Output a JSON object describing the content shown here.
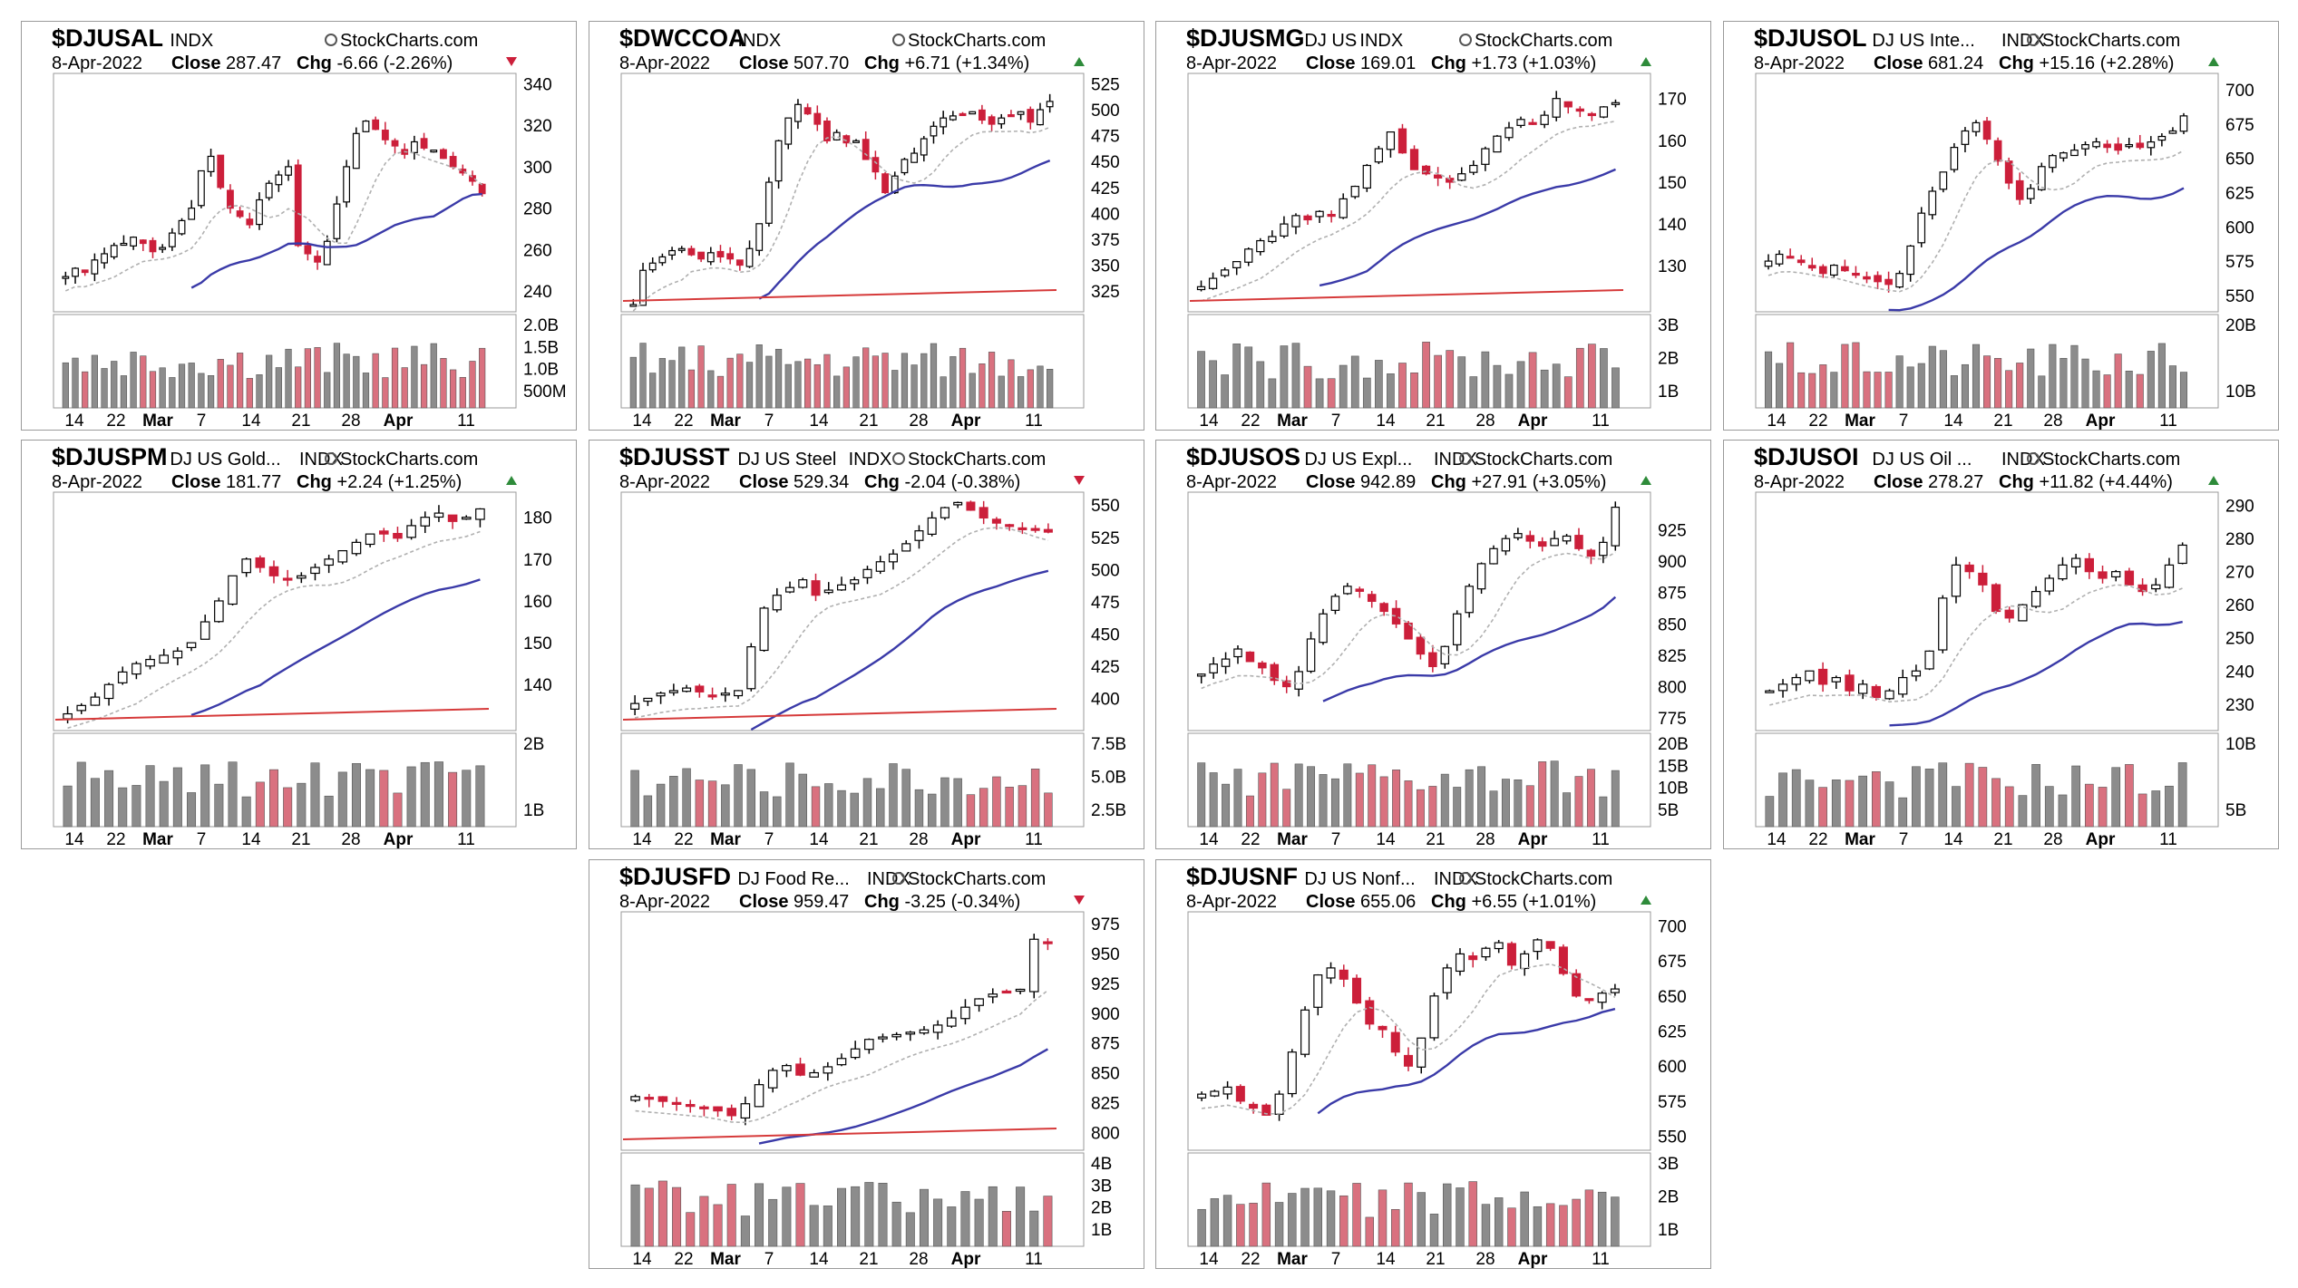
{
  "colors": {
    "up": "#ffffff",
    "down": "#cc1f3a",
    "vol_up": "#8c8c8c",
    "vol_down": "#d9717f",
    "ma_short": "#b0b0b0",
    "ma_mid": "#3a3aa8",
    "ma_long": "#d63a3a",
    "up_arrow": "#2e8b3a",
    "down_arrow": "#cc1f3a"
  },
  "watermark": "StockCharts.com",
  "x_axis_labels": [
    "14",
    "22",
    "Mar",
    "7",
    "14",
    "21",
    "28",
    "Apr",
    "11"
  ],
  "chart_data": [
    {
      "symbol": "$DJUSAL",
      "desc": "",
      "exchange": "INDX",
      "date": "8-Apr-2022",
      "close": "287.47",
      "chg": "-6.66 (-2.26%)",
      "direction": "down",
      "price_ticks": [
        "340",
        "320",
        "300",
        "280",
        "260",
        "240"
      ],
      "price_range": [
        230,
        345
      ],
      "vol_ticks": [
        "2.0B",
        "1.5B",
        "1.0B",
        "500M"
      ],
      "ma": {
        "short": true,
        "mid": true,
        "long": false
      },
      "series": {
        "close": [
          247,
          251,
          249,
          255,
          258,
          262,
          263,
          266,
          263,
          259,
          261,
          268,
          274,
          280,
          298,
          305,
          290,
          280,
          276,
          272,
          284,
          292,
          296,
          300,
          262,
          258,
          254,
          264,
          282,
          300,
          316,
          322,
          318,
          313,
          310,
          306,
          312,
          309,
          308,
          304,
          300,
          297,
          293,
          287
        ]
      }
    },
    {
      "symbol": "$DWCCOA",
      "desc": "",
      "exchange": "INDX",
      "date": "8-Apr-2022",
      "close": "507.70",
      "chg": "+6.71 (+1.34%)",
      "direction": "up",
      "price_ticks": [
        "525",
        "500",
        "475",
        "450",
        "425",
        "400",
        "375",
        "350",
        "325"
      ],
      "price_range": [
        305,
        535
      ],
      "vol_ticks": [],
      "ma": {
        "short": true,
        "mid": true,
        "long": true
      },
      "series": {
        "close": [
          312,
          345,
          352,
          358,
          364,
          366,
          360,
          356,
          362,
          358,
          356,
          350,
          366,
          390,
          430,
          470,
          492,
          505,
          496,
          486,
          470,
          478,
          468,
          470,
          452,
          440,
          420,
          436,
          452,
          458,
          472,
          484,
          492,
          494,
          496,
          498,
          490,
          486,
          492,
          495,
          498,
          488,
          500,
          508
        ]
      }
    },
    {
      "symbol": "$DJUSMG",
      "desc": "DJ US",
      "exchange": "INDX",
      "date": "8-Apr-2022",
      "close": "169.01",
      "chg": "+1.73 (+1.03%)",
      "direction": "up",
      "price_ticks": [
        "170",
        "160",
        "150",
        "140",
        "130"
      ],
      "price_range": [
        119,
        176
      ],
      "vol_ticks": [
        "3B",
        "2B",
        "1B"
      ],
      "ma": {
        "short": true,
        "mid": true,
        "long": true
      },
      "series": {
        "close": [
          125,
          127,
          129,
          131,
          134,
          136,
          137,
          140,
          142,
          141,
          143,
          142,
          146,
          149,
          154,
          158,
          162,
          157,
          153,
          152,
          151,
          150,
          152,
          154,
          158,
          161,
          163,
          165,
          164,
          166,
          170,
          168,
          167,
          166,
          168,
          169
        ]
      }
    },
    {
      "symbol": "$DJUSOL",
      "desc": "DJ US Inte...",
      "exchange": "INDX",
      "date": "8-Apr-2022",
      "close": "681.24",
      "chg": "+15.16 (+2.28%)",
      "direction": "up",
      "price_ticks": [
        "700",
        "675",
        "650",
        "625",
        "600",
        "575",
        "550"
      ],
      "price_range": [
        538,
        712
      ],
      "vol_ticks": [
        "20B",
        "10B"
      ],
      "ma": {
        "short": true,
        "mid": true,
        "long": false
      },
      "series": {
        "close": [
          575,
          580,
          578,
          574,
          570,
          566,
          572,
          568,
          565,
          562,
          560,
          558,
          566,
          586,
          610,
          626,
          640,
          658,
          670,
          676,
          664,
          648,
          632,
          620,
          628,
          644,
          652,
          654,
          656,
          660,
          662,
          658,
          656,
          660,
          658,
          662,
          666,
          670,
          681
        ]
      }
    },
    {
      "symbol": "$DJUSPM",
      "desc": "DJ US Gold...",
      "exchange": "INDX",
      "date": "8-Apr-2022",
      "close": "181.77",
      "chg": "+2.24 (+1.25%)",
      "direction": "up",
      "price_ticks": [
        "180",
        "170",
        "160",
        "150",
        "140"
      ],
      "price_range": [
        129,
        186
      ],
      "vol_ticks": [
        "2B",
        "1B"
      ],
      "ma": {
        "short": true,
        "mid": true,
        "long": true
      },
      "series": {
        "close": [
          133,
          135,
          137,
          140,
          143,
          145,
          146,
          147,
          148,
          150,
          155,
          160,
          166,
          170,
          168,
          166,
          165,
          166,
          168,
          170,
          172,
          174,
          176,
          176,
          175,
          178,
          180,
          181,
          179,
          180,
          182
        ]
      }
    },
    {
      "symbol": "$DJUSST",
      "desc": "DJ US Steel",
      "exchange": "INDX",
      "date": "8-Apr-2022",
      "close": "529.34",
      "chg": "-2.04 (-0.38%)",
      "direction": "down",
      "price_ticks": [
        "550",
        "525",
        "500",
        "475",
        "450",
        "425",
        "400"
      ],
      "price_range": [
        375,
        560
      ],
      "vol_ticks": [
        "7.5B",
        "5.0B",
        "2.5B"
      ],
      "ma": {
        "short": true,
        "mid": true,
        "long": true
      },
      "series": {
        "close": [
          396,
          400,
          404,
          406,
          408,
          405,
          402,
          404,
          406,
          440,
          470,
          480,
          486,
          492,
          480,
          484,
          488,
          492,
          500,
          506,
          512,
          520,
          530,
          540,
          548,
          552,
          546,
          540,
          536,
          534,
          532,
          531,
          529
        ]
      }
    },
    {
      "symbol": "$DJUSOS",
      "desc": "DJ US Expl...",
      "exchange": "INDX",
      "date": "8-Apr-2022",
      "close": "942.89",
      "chg": "+27.91 (+3.05%)",
      "direction": "up",
      "price_ticks": [
        "950",
        "925",
        "900",
        "875",
        "850",
        "825",
        "800",
        "775"
      ],
      "price_range": [
        765,
        955
      ],
      "vol_ticks": [
        "20B",
        "15B",
        "10B",
        "5B"
      ],
      "ma": {
        "short": true,
        "mid": true,
        "long": false
      },
      "series": {
        "close": [
          810,
          818,
          822,
          830,
          820,
          815,
          805,
          800,
          812,
          838,
          858,
          872,
          880,
          876,
          868,
          860,
          850,
          838,
          826,
          816,
          832,
          858,
          880,
          898,
          910,
          918,
          922,
          916,
          912,
          918,
          920,
          910,
          904,
          915,
          943
        ]
      }
    },
    {
      "symbol": "$DJUSOI",
      "desc": "DJ US Oil ...",
      "exchange": "INDX",
      "date": "8-Apr-2022",
      "close": "278.27",
      "chg": "+11.82 (+4.44%)",
      "direction": "up",
      "price_ticks": [
        "290",
        "280",
        "270",
        "260",
        "250",
        "240",
        "230"
      ],
      "price_range": [
        222,
        294
      ],
      "vol_ticks": [
        "10B",
        "5B"
      ],
      "ma": {
        "short": true,
        "mid": true,
        "long": false
      },
      "series": {
        "close": [
          234,
          236,
          238,
          240,
          236,
          238,
          234,
          236,
          232,
          234,
          238,
          240,
          246,
          262,
          272,
          270,
          266,
          258,
          256,
          260,
          264,
          268,
          272,
          274,
          270,
          268,
          270,
          266,
          264,
          266,
          272,
          278
        ]
      }
    },
    {
      "symbol": "$DJUSFD",
      "desc": "DJ Food Re...",
      "exchange": "INDX",
      "date": "8-Apr-2022",
      "close": "959.47",
      "chg": "-3.25 (-0.34%)",
      "direction": "down",
      "price_ticks": [
        "975",
        "950",
        "925",
        "900",
        "875",
        "850",
        "825",
        "800"
      ],
      "price_range": [
        785,
        985
      ],
      "vol_ticks": [
        "4B",
        "3B",
        "2B",
        "1B"
      ],
      "ma": {
        "short": true,
        "mid": true,
        "long": true
      },
      "series": {
        "close": [
          830,
          828,
          826,
          824,
          822,
          820,
          818,
          814,
          824,
          840,
          852,
          856,
          848,
          850,
          855,
          862,
          870,
          878,
          880,
          882,
          884,
          886,
          890,
          896,
          905,
          912,
          916,
          918,
          920,
          962,
          959
        ]
      }
    },
    {
      "symbol": "$DJUSNF",
      "desc": "DJ US Nonf...",
      "exchange": "INDX",
      "date": "8-Apr-2022",
      "close": "655.06",
      "chg": "+6.55 (+1.01%)",
      "direction": "up",
      "price_ticks": [
        "700",
        "675",
        "650",
        "625",
        "600",
        "575",
        "550"
      ],
      "price_range": [
        540,
        710
      ],
      "vol_ticks": [
        "3B",
        "2B",
        "1B"
      ],
      "ma": {
        "short": true,
        "mid": true,
        "long": false
      },
      "series": {
        "close": [
          580,
          582,
          585,
          575,
          570,
          565,
          580,
          610,
          640,
          665,
          670,
          662,
          645,
          630,
          626,
          610,
          600,
          620,
          650,
          670,
          680,
          676,
          684,
          688,
          672,
          680,
          690,
          684,
          666,
          650,
          648,
          652,
          655
        ]
      }
    }
  ]
}
